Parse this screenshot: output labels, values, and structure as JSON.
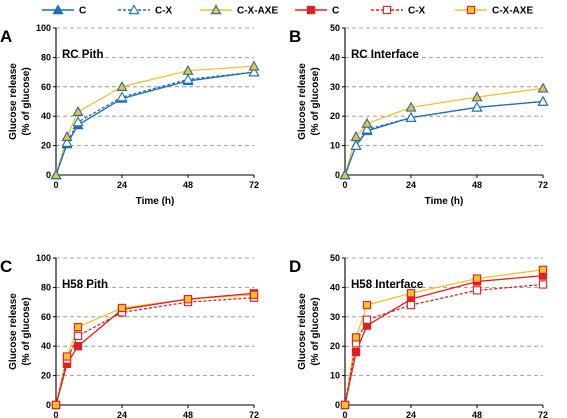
{
  "legend": [
    {
      "label": "C",
      "color": "#1f6fb4",
      "marker": "triangle",
      "fill": "#1f6fb4",
      "dash": false
    },
    {
      "label": "C-X",
      "color": "#1f6fb4",
      "marker": "triangle",
      "fill": "#ffffff",
      "dash": true
    },
    {
      "label": "C-X-AXE",
      "color": "#1f6fb4",
      "marker": "triangle",
      "fill": "#f2c12e",
      "dash": false,
      "lineColor": "#f2c12e"
    },
    {
      "label": "C",
      "color": "#e02020",
      "marker": "square",
      "fill": "#e02020",
      "dash": false
    },
    {
      "label": "C-X",
      "color": "#e02020",
      "marker": "square",
      "fill": "#ffffff",
      "dash": true
    },
    {
      "label": "C-X-AXE",
      "color": "#e02020",
      "marker": "square",
      "fill": "#f2c12e",
      "dash": false,
      "lineColor": "#f2c12e"
    }
  ],
  "chart_data": [
    {
      "type": "line",
      "panel": "A",
      "title": "RC Pith",
      "xlabel": "Time (h)",
      "ylabel": [
        "Glucose release",
        "(% of glucose)"
      ],
      "x": [
        0,
        4,
        8,
        24,
        48,
        72
      ],
      "xticks": [
        "0",
        "24",
        "48",
        "72"
      ],
      "xlim": [
        0,
        72
      ],
      "ylim": [
        0,
        100
      ],
      "yticks": [
        "0",
        "20",
        "40",
        "60",
        "80",
        "100"
      ],
      "grid": "dashed-horizontal",
      "series": [
        {
          "name": "C",
          "marker": "triangle",
          "values": [
            0,
            21,
            34,
            52,
            64,
            70
          ]
        },
        {
          "name": "C-X",
          "marker": "triangle",
          "values": [
            0,
            22,
            36,
            53,
            65,
            70
          ]
        },
        {
          "name": "C-X-AXE",
          "marker": "triangle",
          "values": [
            0,
            26,
            43,
            60,
            71,
            74
          ]
        }
      ]
    },
    {
      "type": "line",
      "panel": "B",
      "title": "RC Interface",
      "xlabel": "Time (h)",
      "ylabel": [
        "Glucose release",
        "(% of glucose)"
      ],
      "x": [
        0,
        4,
        8,
        24,
        48,
        72
      ],
      "xticks": [
        "0",
        "24",
        "48",
        "72"
      ],
      "xlim": [
        0,
        72
      ],
      "ylim": [
        0,
        50
      ],
      "yticks": [
        "0",
        "10",
        "20",
        "30",
        "40",
        "50"
      ],
      "grid": "dashed-horizontal",
      "series": [
        {
          "name": "C",
          "marker": "triangle",
          "values": [
            0,
            10,
            15,
            19.5,
            23,
            25
          ]
        },
        {
          "name": "C-X",
          "marker": "triangle",
          "values": [
            0,
            10,
            15.5,
            19.5,
            23,
            25
          ]
        },
        {
          "name": "C-X-AXE",
          "marker": "triangle",
          "values": [
            0,
            13,
            17.5,
            23,
            26.5,
            29.5
          ]
        }
      ]
    },
    {
      "type": "line",
      "panel": "C",
      "title": "H58 Pith",
      "xlabel": "Time (h)",
      "ylabel": [
        "Glucose release",
        "(% of glucose)"
      ],
      "x": [
        0,
        4,
        8,
        24,
        48,
        72
      ],
      "xticks": [
        "0",
        "24",
        "48",
        "72"
      ],
      "xlim": [
        0,
        72
      ],
      "ylim": [
        0,
        100
      ],
      "yticks": [
        "0",
        "20",
        "40",
        "60",
        "80",
        "100"
      ],
      "grid": "dashed-horizontal",
      "series": [
        {
          "name": "C",
          "marker": "square",
          "values": [
            0,
            28,
            40,
            65,
            72,
            76
          ]
        },
        {
          "name": "C-X",
          "marker": "square",
          "values": [
            0,
            31,
            47,
            63,
            70,
            73
          ]
        },
        {
          "name": "C-X-AXE",
          "marker": "square",
          "values": [
            0,
            33,
            53,
            66,
            72,
            75
          ]
        }
      ]
    },
    {
      "type": "line",
      "panel": "D",
      "title": "H58 Interface",
      "xlabel": "Time (h)",
      "ylabel": [
        "Glucose release",
        "(% of glucose)"
      ],
      "x": [
        0,
        4,
        8,
        24,
        48,
        72
      ],
      "xticks": [
        "0",
        "24",
        "48",
        "72"
      ],
      "xlim": [
        0,
        72
      ],
      "ylim": [
        0,
        50
      ],
      "yticks": [
        "0",
        "10",
        "20",
        "30",
        "40",
        "50"
      ],
      "grid": "dashed-horizontal",
      "series": [
        {
          "name": "C",
          "marker": "square",
          "values": [
            0,
            18,
            27,
            36,
            42,
            44
          ]
        },
        {
          "name": "C-X",
          "marker": "square",
          "values": [
            0,
            21,
            29,
            34,
            39,
            41
          ]
        },
        {
          "name": "C-X-AXE",
          "marker": "square",
          "values": [
            0,
            23,
            34,
            38,
            43,
            46
          ]
        }
      ]
    }
  ]
}
